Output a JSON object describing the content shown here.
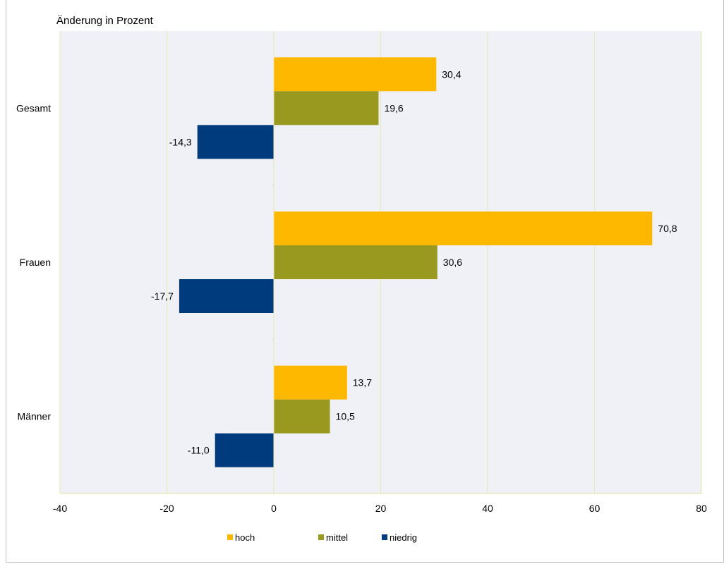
{
  "chart_data": {
    "type": "bar",
    "orientation": "horizontal",
    "title": "Änderung in Prozent",
    "xlabel": "",
    "ylabel": "",
    "categories": [
      "Gesamt",
      "Frauen",
      "Männer"
    ],
    "series": [
      {
        "name": "hoch",
        "color": "#FFB800",
        "values": [
          30.4,
          70.8,
          13.7
        ]
      },
      {
        "name": "mittel",
        "color": "#999920",
        "values": [
          19.6,
          30.6,
          10.5
        ]
      },
      {
        "name": "niedrig",
        "color": "#003C7D",
        "values": [
          -14.3,
          -17.7,
          -11.0
        ]
      }
    ],
    "data_labels": [
      [
        "30,4",
        "70,8",
        "13,7"
      ],
      [
        "19,6",
        "30,6",
        "10,5"
      ],
      [
        "-14,3",
        "-17,7",
        "-11,0"
      ]
    ],
    "xlim": [
      -40,
      80
    ],
    "xticks": [
      -40,
      -20,
      0,
      20,
      40,
      60,
      80
    ],
    "xtick_labels": [
      "-40",
      "-20",
      "0",
      "20",
      "40",
      "60",
      "80"
    ],
    "grid": true,
    "legend_position": "bottom",
    "plot_background": "#EFF1F7",
    "grid_color": "#E8E8B0"
  }
}
